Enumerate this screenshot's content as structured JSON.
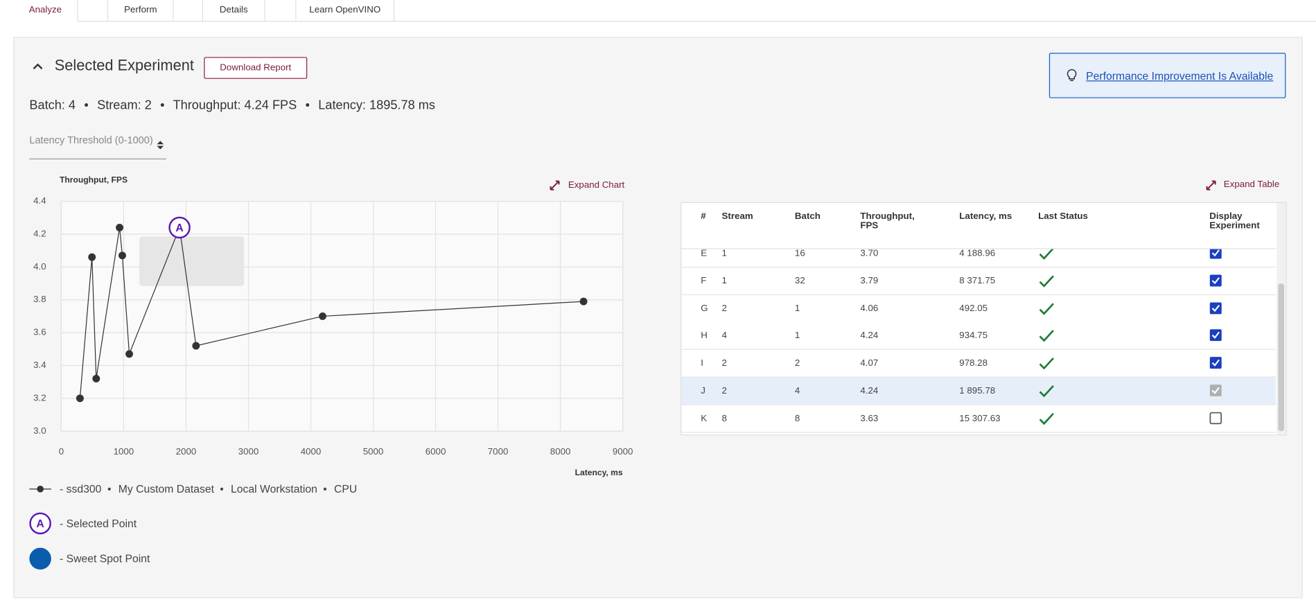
{
  "tabs": [
    "Analyze",
    "Perform",
    "Details",
    "Learn OpenVINO"
  ],
  "header": {
    "title": "Selected Experiment",
    "button": "Download Report",
    "notice": "Performance Improvement Is Available"
  },
  "summary": [
    "Batch: 4",
    "Stream: 2",
    "Throughput: 4.24 FPS",
    "Latency: 1895.78 ms"
  ],
  "threshold_placeholder": "Latency Threshold (0-1000)",
  "chart_data": {
    "type": "line",
    "y_label": "Throughput, FPS",
    "x_label": "Latency, ms",
    "expand": "Expand Chart",
    "x": [
      300,
      492.05,
      560,
      934.75,
      978.28,
      1090,
      1895.78,
      2160,
      4188.96,
      8371.75
    ],
    "series": [
      {
        "color": "#333333",
        "values": [
          3.2,
          4.06,
          3.32,
          4.24,
          4.07,
          3.47,
          4.24,
          3.52,
          3.7,
          3.79
        ]
      }
    ],
    "selected_label": "A",
    "selected": 6,
    "selected_color": "#5a17b3",
    "xlim": [
      0,
      9000
    ],
    "ylim": [
      3,
      4.4
    ],
    "xticks": [
      0,
      1000,
      2000,
      3000,
      4000,
      5000,
      6000,
      7000,
      8000,
      9000
    ],
    "yticks": [
      {
        "value": 3,
        "label": "3.0"
      },
      3.2,
      3.4,
      3.6,
      3.8,
      {
        "value": 4,
        "label": "4.0"
      },
      4.2,
      4.4
    ],
    "grid": true
  },
  "legend": {
    "model": "- ssd300",
    "dataset": "My Custom Dataset",
    "environment": "Local Workstation",
    "device": "CPU",
    "selected": "- Selected Point",
    "sweet_spot": "- Sweet Spot Point",
    "sweet_spot_color": "#0a5cad"
  },
  "table": {
    "expand": "Expand Table",
    "columns": [
      "#",
      "Stream",
      "Batch",
      "Throughput, FPS",
      "Latency, ms",
      "Last Status",
      "Display Experiment"
    ],
    "rows": [
      {
        "cells": [
          "E",
          "1",
          "16",
          "3.70",
          "4 188.96"
        ],
        "display": true,
        "selected": false
      },
      {
        "cells": [
          "F",
          "1",
          "32",
          "3.79",
          "8 371.75"
        ],
        "display": true,
        "selected": false
      },
      {
        "cells": [
          "G",
          "2",
          "1",
          "4.06",
          "492.05"
        ],
        "display": true,
        "selected": false
      },
      {
        "cells": [
          "H",
          "4",
          "1",
          "4.24",
          "934.75"
        ],
        "display": true,
        "selected": false
      },
      {
        "cells": [
          "I",
          "2",
          "2",
          "4.07",
          "978.28"
        ],
        "display": true,
        "selected": false
      },
      {
        "cells": [
          "J",
          "2",
          "4",
          "4.24",
          "1 895.78"
        ],
        "display": true,
        "selected": true
      },
      {
        "cells": [
          "K",
          "8",
          "8",
          "3.63",
          "15 307.63"
        ],
        "display": false,
        "selected": false
      }
    ]
  }
}
